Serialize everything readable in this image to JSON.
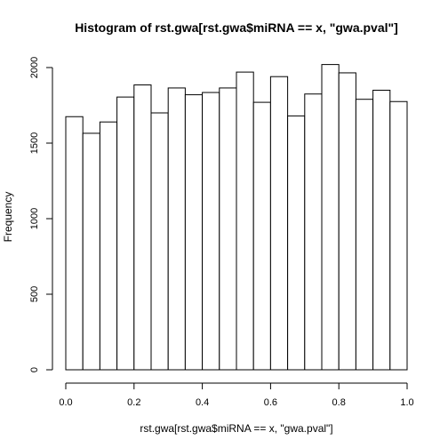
{
  "chart_data": {
    "type": "bar",
    "title": "Histogram of rst.gwa[rst.gwa$miRNA == x, \"gwa.pval\"]",
    "xlabel": "rst.gwa[rst.gwa$miRNA == x, \"gwa.pval\"]",
    "ylabel": "Frequency",
    "xlim": [
      0,
      1
    ],
    "ylim": [
      0,
      2000
    ],
    "xticks": [
      0.0,
      0.2,
      0.4,
      0.6,
      0.8,
      1.0
    ],
    "xtick_labels": [
      "0.0",
      "0.2",
      "0.4",
      "0.6",
      "0.8",
      "1.0"
    ],
    "yticks": [
      0,
      500,
      1000,
      1500,
      2000
    ],
    "ytick_labels": [
      "0",
      "500",
      "1000",
      "1500",
      "2000"
    ],
    "bin_edges": [
      0,
      0.05,
      0.1,
      0.15,
      0.2,
      0.25,
      0.3,
      0.35,
      0.4,
      0.45,
      0.5,
      0.55,
      0.6,
      0.65,
      0.7,
      0.75,
      0.8,
      0.85,
      0.9,
      0.95,
      1.0
    ],
    "values": [
      1675,
      1565,
      1640,
      1805,
      1885,
      1700,
      1865,
      1820,
      1835,
      1865,
      1970,
      1770,
      1940,
      1680,
      1825,
      2020,
      1965,
      1790,
      1850,
      1775
    ],
    "grid": false,
    "legend": "none",
    "colors": {
      "bar_fill": "#ffffff",
      "bar_stroke": "#000000"
    }
  }
}
